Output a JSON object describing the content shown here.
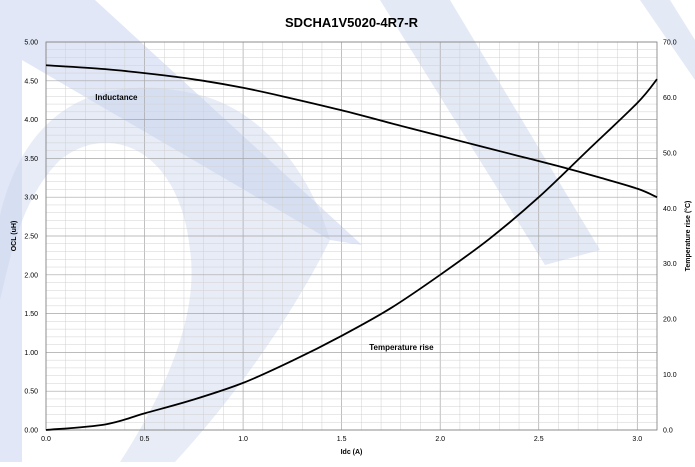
{
  "colors": {
    "curve": "#000000",
    "grid_major": "#a6a6a6",
    "grid_minor": "#d0d0d0",
    "watermark": "#c9d4ee"
  },
  "chart_data": {
    "type": "line",
    "title": "SDCHA1V5020-4R7-R",
    "xlabel": "Idc (A)",
    "ylabel": "OCL (uH)",
    "y2label": "Temperature rise (°C)",
    "xlim": [
      0,
      3.1
    ],
    "ylim": [
      0,
      5.0
    ],
    "y2lim": [
      0,
      70.0
    ],
    "grid": true,
    "x_ticks": [
      "0.0",
      "0.5",
      "1.0",
      "1.5",
      "2.0",
      "2.5",
      "3.0"
    ],
    "y_ticks": [
      "0.00",
      "0.50",
      "1.00",
      "1.50",
      "2.00",
      "2.50",
      "3.00",
      "3.50",
      "4.00",
      "4.50",
      "5.00"
    ],
    "y2_ticks": [
      "0.0",
      "10.0",
      "20.0",
      "30.0",
      "40.0",
      "50.0",
      "60.0",
      "70.0"
    ],
    "series": [
      {
        "name": "Inductance",
        "axis": "left",
        "x": [
          0,
          0.3,
          0.6,
          0.8,
          1.0,
          1.2,
          1.5,
          1.8,
          2.0,
          2.2,
          2.4,
          2.6,
          2.8,
          3.0,
          3.1
        ],
        "y": [
          4.7,
          4.65,
          4.57,
          4.5,
          4.41,
          4.3,
          4.12,
          3.92,
          3.79,
          3.66,
          3.53,
          3.4,
          3.26,
          3.11,
          3.0
        ]
      },
      {
        "name": "Temperature rise",
        "axis": "right",
        "x": [
          0,
          0.3,
          0.5,
          0.75,
          1.0,
          1.25,
          1.5,
          1.75,
          2.0,
          2.25,
          2.5,
          2.75,
          3.0,
          3.1
        ],
        "y": [
          0,
          1.0,
          3.0,
          5.5,
          8.5,
          12.5,
          17.0,
          22.0,
          28.0,
          34.5,
          42.0,
          50.5,
          59.0,
          63.3
        ]
      }
    ]
  }
}
